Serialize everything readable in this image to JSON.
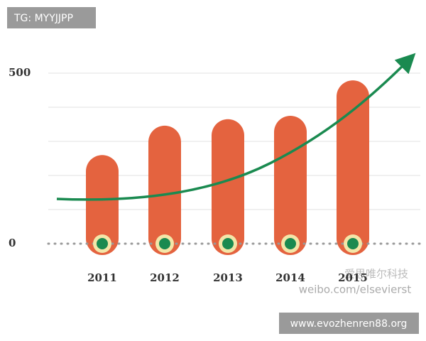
{
  "chart_data": {
    "type": "bar",
    "categories": [
      "2011",
      "2012",
      "2013",
      "2014",
      "2015"
    ],
    "values": [
      260,
      346,
      365,
      375,
      479
    ],
    "color": "#e4633f",
    "ylim": [
      0,
      500
    ],
    "yticks": [
      0,
      500
    ],
    "grid_lines": [
      100,
      200,
      300,
      400,
      500
    ],
    "watermarks": [
      "TG: MYYJJPP",
      "www.evozhenren88.org",
      "weibo.com/elsevierst",
      "爱思唯尔科技"
    ]
  }
}
